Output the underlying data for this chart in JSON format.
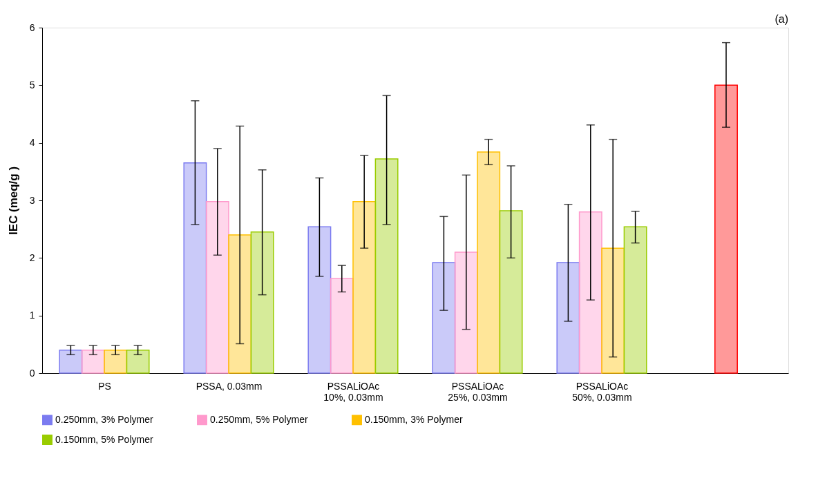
{
  "chart_data": {
    "type": "bar",
    "ylabel": "IEC (meq/g )",
    "annotations": [
      "(a)"
    ],
    "categories": [
      "PS",
      "PSSA, 0.03mm",
      "PSSALiOAc\n10%, 0.03mm",
      "PSSALiOAc\n25%, 0.03mm",
      "PSSALiOAc\n50%, 0.03mm",
      null
    ],
    "series": [
      {
        "name": "0.250mm, 3% Polymer",
        "color": "#7b7bf0",
        "values": [
          0.4,
          3.65,
          2.54,
          1.92,
          1.92,
          null
        ],
        "errors": [
          [
            0.32,
            0.48
          ],
          [
            2.58,
            4.73
          ],
          [
            1.68,
            3.39
          ],
          [
            1.09,
            2.72
          ],
          [
            0.9,
            2.93
          ],
          null
        ]
      },
      {
        "name": "0.250mm, 5% Polymer",
        "color": "#ff99cc",
        "values": [
          0.4,
          2.98,
          1.64,
          2.1,
          2.8,
          null
        ],
        "errors": [
          [
            0.32,
            0.48
          ],
          [
            2.05,
            3.9
          ],
          [
            1.41,
            1.87
          ],
          [
            0.76,
            3.44
          ],
          [
            1.27,
            4.31
          ],
          null
        ]
      },
      {
        "name": "0.150mm, 3% Polymer",
        "color": "#ffc000",
        "values": [
          0.4,
          2.4,
          2.98,
          3.84,
          2.17,
          null
        ],
        "errors": [
          [
            0.32,
            0.48
          ],
          [
            0.51,
            4.29
          ],
          [
            2.17,
            3.78
          ],
          [
            3.62,
            4.06
          ],
          [
            0.28,
            4.06
          ],
          null
        ]
      },
      {
        "name": "0.150mm, 5% Polymer",
        "color": "#99cc00",
        "values": [
          0.4,
          2.45,
          3.72,
          2.82,
          2.54,
          null
        ],
        "errors": [
          [
            0.32,
            0.48
          ],
          [
            1.36,
            3.53
          ],
          [
            2.58,
            4.82
          ],
          [
            2.0,
            3.6
          ],
          [
            2.26,
            2.81
          ],
          null
        ]
      },
      {
        "color": "#ff0000",
        "values": [
          null,
          null,
          null,
          null,
          null,
          5.0
        ],
        "errors": [
          null,
          null,
          null,
          null,
          null,
          [
            4.27,
            5.74
          ]
        ]
      }
    ],
    "ylim": [
      0,
      6
    ],
    "yticks": [
      0,
      1,
      2,
      3,
      4,
      5,
      6
    ],
    "grid": false,
    "legend": "bottom"
  }
}
